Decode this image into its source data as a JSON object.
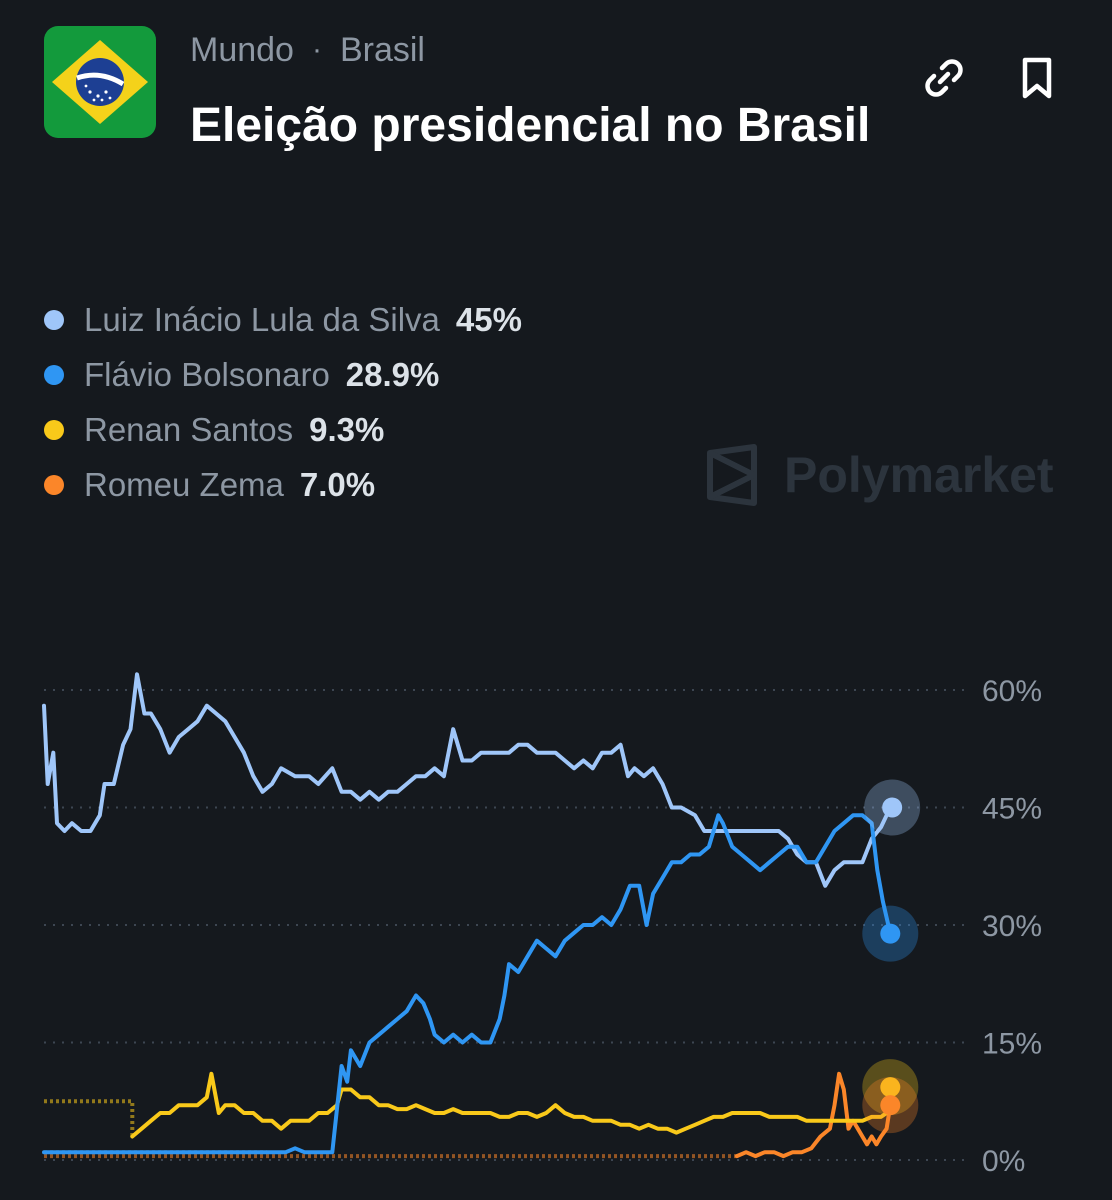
{
  "header": {
    "breadcrumb": [
      "Mundo",
      "Brasil"
    ],
    "breadcrumb_separator": "·",
    "title": "Eleição presidencial no Brasil",
    "icons": [
      "flag-icon",
      "link-icon",
      "bookmark-icon"
    ]
  },
  "watermark": "Polymarket",
  "colors": {
    "background": "#15191e",
    "lula": "#9fc6f9",
    "flavio": "#2f96f3",
    "renan": "#f9c91a",
    "romeu": "#fb8629"
  },
  "legend": [
    {
      "name": "Luiz Inácio Lula da Silva",
      "value": "45%",
      "color": "#9fc6f9"
    },
    {
      "name": "Flávio Bolsonaro",
      "value": "28.9%",
      "color": "#2f96f3"
    },
    {
      "name": "Renan Santos",
      "value": "9.3%",
      "color": "#f9c91a"
    },
    {
      "name": "Romeu Zema",
      "value": "7.0%",
      "color": "#fb8629"
    }
  ],
  "chart_data": {
    "type": "line",
    "y_ticks": [
      "60%",
      "45%",
      "30%",
      "15%",
      "0%"
    ],
    "y_tick_values": [
      60,
      45,
      30,
      15,
      0
    ],
    "ylim": [
      0,
      60
    ],
    "xlim": [
      0,
      100
    ],
    "grid": true,
    "x_axis_labels": false,
    "series": [
      {
        "name": "Luiz Inácio Lula da Silva",
        "color": "#9fc6f9",
        "current": 45,
        "points": [
          [
            0,
            58
          ],
          [
            0.4,
            48
          ],
          [
            1,
            52
          ],
          [
            1.4,
            43
          ],
          [
            2.2,
            42
          ],
          [
            3,
            43
          ],
          [
            4,
            42
          ],
          [
            5,
            42
          ],
          [
            6,
            44
          ],
          [
            6.5,
            48
          ],
          [
            7.5,
            48
          ],
          [
            8.5,
            53
          ],
          [
            9.3,
            55
          ],
          [
            10,
            62
          ],
          [
            10.8,
            57
          ],
          [
            11.5,
            57
          ],
          [
            12.5,
            55
          ],
          [
            13.5,
            52
          ],
          [
            14.5,
            54
          ],
          [
            15.5,
            55
          ],
          [
            16.5,
            56
          ],
          [
            17.5,
            58
          ],
          [
            18.5,
            57
          ],
          [
            19.5,
            56
          ],
          [
            20.5,
            54
          ],
          [
            21.5,
            52
          ],
          [
            22.5,
            49
          ],
          [
            23.5,
            47
          ],
          [
            24.5,
            48
          ],
          [
            25.5,
            50
          ],
          [
            27,
            49
          ],
          [
            28.5,
            49
          ],
          [
            29.5,
            48
          ],
          [
            31,
            50
          ],
          [
            32,
            47
          ],
          [
            33,
            47
          ],
          [
            34,
            46
          ],
          [
            35,
            47
          ],
          [
            36,
            46
          ],
          [
            37,
            47
          ],
          [
            38,
            47
          ],
          [
            39,
            48
          ],
          [
            40,
            49
          ],
          [
            41,
            49
          ],
          [
            42,
            50
          ],
          [
            43,
            49
          ],
          [
            44,
            55
          ],
          [
            45,
            51
          ],
          [
            46,
            51
          ],
          [
            47,
            52
          ],
          [
            48,
            52
          ],
          [
            49,
            52
          ],
          [
            50,
            52
          ],
          [
            51,
            53
          ],
          [
            52,
            53
          ],
          [
            53,
            52
          ],
          [
            54,
            52
          ],
          [
            55,
            52
          ],
          [
            56,
            51
          ],
          [
            57,
            50
          ],
          [
            58,
            51
          ],
          [
            59,
            50
          ],
          [
            60,
            52
          ],
          [
            61,
            52
          ],
          [
            62,
            53
          ],
          [
            62.8,
            49
          ],
          [
            63.5,
            50
          ],
          [
            64.5,
            49
          ],
          [
            65.5,
            50
          ],
          [
            66.5,
            48
          ],
          [
            67.5,
            45
          ],
          [
            68.5,
            45
          ],
          [
            70,
            44
          ],
          [
            71,
            42
          ],
          [
            72.5,
            42
          ],
          [
            74,
            42
          ],
          [
            75,
            42
          ],
          [
            76,
            42
          ],
          [
            77,
            42
          ],
          [
            78,
            42
          ],
          [
            79,
            42
          ],
          [
            80,
            41
          ],
          [
            81,
            39
          ],
          [
            82,
            38
          ],
          [
            83,
            38
          ],
          [
            84,
            35
          ],
          [
            85,
            37
          ],
          [
            86,
            38
          ],
          [
            87,
            38
          ],
          [
            88,
            38
          ],
          [
            89,
            41
          ],
          [
            90,
            42.5
          ],
          [
            90.6,
            44
          ],
          [
            91.2,
            45
          ]
        ]
      },
      {
        "name": "Flávio Bolsonaro",
        "color": "#2f96f3",
        "current": 28.9,
        "points": [
          [
            0,
            1
          ],
          [
            5,
            1
          ],
          [
            10,
            1
          ],
          [
            15,
            1
          ],
          [
            20,
            1
          ],
          [
            25,
            1
          ],
          [
            26,
            1
          ],
          [
            27,
            1.5
          ],
          [
            28,
            1
          ],
          [
            30,
            1
          ],
          [
            31,
            1
          ],
          [
            32,
            12
          ],
          [
            32.6,
            10
          ],
          [
            33,
            14
          ],
          [
            34,
            12
          ],
          [
            35,
            15
          ],
          [
            36,
            16
          ],
          [
            37,
            17
          ],
          [
            38,
            18
          ],
          [
            39,
            19
          ],
          [
            40,
            21
          ],
          [
            40.8,
            20
          ],
          [
            41.5,
            18
          ],
          [
            42,
            16
          ],
          [
            43,
            15
          ],
          [
            44,
            16
          ],
          [
            45,
            15
          ],
          [
            46,
            16
          ],
          [
            47,
            15
          ],
          [
            48,
            15
          ],
          [
            49,
            18
          ],
          [
            49.5,
            21
          ],
          [
            50,
            25
          ],
          [
            51,
            24
          ],
          [
            52,
            26
          ],
          [
            53,
            28
          ],
          [
            54,
            27
          ],
          [
            55,
            26
          ],
          [
            56,
            28
          ],
          [
            57,
            29
          ],
          [
            58,
            30
          ],
          [
            59,
            30
          ],
          [
            60,
            31
          ],
          [
            61,
            30
          ],
          [
            62,
            32
          ],
          [
            63,
            35
          ],
          [
            64,
            35
          ],
          [
            64.8,
            30
          ],
          [
            65.5,
            34
          ],
          [
            66.5,
            36
          ],
          [
            67.5,
            38
          ],
          [
            68.5,
            38
          ],
          [
            69.5,
            39
          ],
          [
            70.5,
            39
          ],
          [
            71.5,
            40
          ],
          [
            72,
            42
          ],
          [
            72.5,
            44
          ],
          [
            73,
            43
          ],
          [
            74,
            40
          ],
          [
            75,
            39
          ],
          [
            76,
            38
          ],
          [
            77,
            37
          ],
          [
            78,
            38
          ],
          [
            79,
            39
          ],
          [
            80,
            40
          ],
          [
            81,
            40
          ],
          [
            82,
            38
          ],
          [
            83,
            38
          ],
          [
            84,
            40
          ],
          [
            85,
            42
          ],
          [
            86,
            43
          ],
          [
            87,
            44
          ],
          [
            88,
            44
          ],
          [
            89,
            43
          ],
          [
            89.6,
            37
          ],
          [
            90.2,
            33
          ],
          [
            91,
            28.9
          ]
        ]
      },
      {
        "name": "Renan Santos",
        "color": "#f9c91a",
        "current": 9.3,
        "points": [
          [
            9.5,
            3
          ],
          [
            10.5,
            4
          ],
          [
            11.5,
            5
          ],
          [
            12.5,
            6
          ],
          [
            13.5,
            6
          ],
          [
            14.5,
            7
          ],
          [
            15.5,
            7
          ],
          [
            16.5,
            7
          ],
          [
            17.5,
            8
          ],
          [
            18,
            11
          ],
          [
            18.8,
            6
          ],
          [
            19.5,
            7
          ],
          [
            20.5,
            7
          ],
          [
            21.5,
            6
          ],
          [
            22.5,
            6
          ],
          [
            23.5,
            5
          ],
          [
            24.5,
            5
          ],
          [
            25.5,
            4
          ],
          [
            26.5,
            5
          ],
          [
            27.5,
            5
          ],
          [
            28.5,
            5
          ],
          [
            29.5,
            6
          ],
          [
            30.5,
            6
          ],
          [
            31.5,
            7
          ],
          [
            32,
            9
          ],
          [
            33,
            9
          ],
          [
            34,
            8
          ],
          [
            35,
            8
          ],
          [
            36,
            7
          ],
          [
            37,
            7
          ],
          [
            38,
            6.5
          ],
          [
            39,
            6.5
          ],
          [
            40,
            7
          ],
          [
            41,
            6.5
          ],
          [
            42,
            6
          ],
          [
            43,
            6
          ],
          [
            44,
            6.5
          ],
          [
            45,
            6
          ],
          [
            46,
            6
          ],
          [
            47,
            6
          ],
          [
            48,
            6
          ],
          [
            49,
            5.5
          ],
          [
            50,
            5.5
          ],
          [
            51,
            6
          ],
          [
            52,
            6
          ],
          [
            53,
            5.5
          ],
          [
            54,
            6
          ],
          [
            55,
            7
          ],
          [
            56,
            6
          ],
          [
            57,
            5.5
          ],
          [
            58,
            5.5
          ],
          [
            59,
            5
          ],
          [
            60,
            5
          ],
          [
            61,
            5
          ],
          [
            62,
            4.5
          ],
          [
            63,
            4.5
          ],
          [
            64,
            4
          ],
          [
            65,
            4.5
          ],
          [
            66,
            4
          ],
          [
            67,
            4
          ],
          [
            68,
            3.5
          ],
          [
            69,
            4
          ],
          [
            70,
            4.5
          ],
          [
            71,
            5
          ],
          [
            72,
            5.5
          ],
          [
            73,
            5.5
          ],
          [
            74,
            6
          ],
          [
            75,
            6
          ],
          [
            76,
            6
          ],
          [
            77,
            6
          ],
          [
            78,
            5.5
          ],
          [
            79,
            5.5
          ],
          [
            80,
            5.5
          ],
          [
            81,
            5.5
          ],
          [
            82,
            5
          ],
          [
            83,
            5
          ],
          [
            84,
            5
          ],
          [
            85,
            5
          ],
          [
            86,
            5
          ],
          [
            87,
            5
          ],
          [
            88,
            5
          ],
          [
            89,
            5.5
          ],
          [
            90,
            5.5
          ],
          [
            90.6,
            6
          ],
          [
            91,
            9.3
          ]
        ]
      },
      {
        "name": "Romeu Zema",
        "color": "#fb8629",
        "current": 7.0,
        "points": [
          [
            74.5,
            0.5
          ],
          [
            75.5,
            1
          ],
          [
            76.5,
            0.5
          ],
          [
            77.5,
            1
          ],
          [
            78.5,
            1
          ],
          [
            79.5,
            0.5
          ],
          [
            80.5,
            1
          ],
          [
            81.5,
            1
          ],
          [
            82.5,
            1.5
          ],
          [
            83.5,
            3
          ],
          [
            84.5,
            4
          ],
          [
            85,
            7
          ],
          [
            85.5,
            11
          ],
          [
            86,
            9
          ],
          [
            86.5,
            4
          ],
          [
            87,
            5
          ],
          [
            87.5,
            4
          ],
          [
            88,
            3
          ],
          [
            88.5,
            2
          ],
          [
            89,
            3
          ],
          [
            89.5,
            2
          ],
          [
            90,
            3
          ],
          [
            90.6,
            4
          ],
          [
            91,
            7.0
          ]
        ]
      }
    ],
    "dotted_series": [
      {
        "color": "#f9c91a",
        "points": [
          [
            0,
            7.5
          ],
          [
            9.5,
            7.5
          ],
          [
            9.5,
            3
          ]
        ]
      },
      {
        "color": "#fb8629",
        "points": [
          [
            0,
            0.5
          ],
          [
            74.5,
            0.5
          ]
        ]
      },
      {
        "color": "#2f96f3",
        "points": [
          [
            0,
            1
          ],
          [
            24,
            1
          ]
        ]
      }
    ]
  }
}
